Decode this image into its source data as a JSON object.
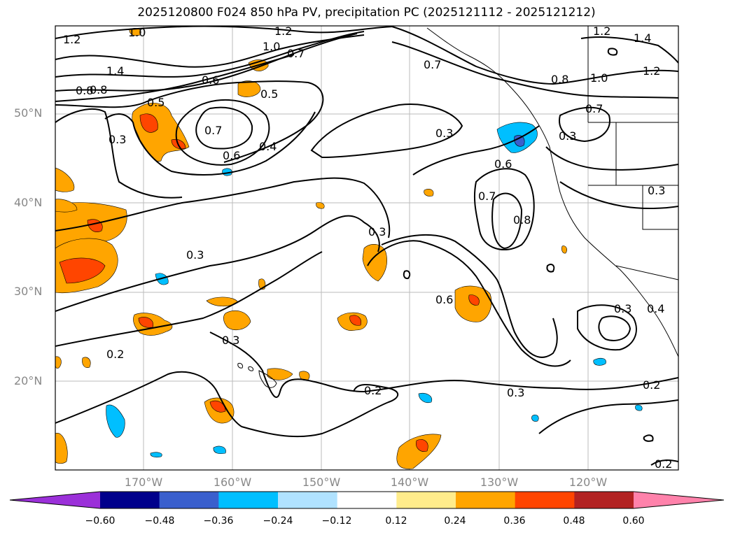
{
  "title": "2025120800 F024 850 hPa PV, precipitation PC (2025121112 - 2025121212)",
  "latitude_labels": [
    "50°N",
    "40°N",
    "30°N",
    "20°N"
  ],
  "longitude_labels": [
    "170°W",
    "160°W",
    "150°W",
    "140°W",
    "130°W",
    "120°W"
  ],
  "colorbar": {
    "tick_labels": [
      "−0.60",
      "−0.48",
      "−0.36",
      "−0.24",
      "−0.12",
      "0.12",
      "0.24",
      "0.36",
      "0.48",
      "0.60"
    ],
    "colors": [
      "#9b30d9",
      "#00008b",
      "#3a5fcd",
      "#00bfff",
      "#b0e2ff",
      "#ffffff",
      "#ffec8b",
      "#ffa500",
      "#ff4500",
      "#b22222",
      "#ff82ab"
    ]
  },
  "contour_labels": [
    {
      "text": "1.2"
    },
    {
      "text": "1.0"
    },
    {
      "text": "1.4"
    },
    {
      "text": "1.2"
    },
    {
      "text": "1.0"
    },
    {
      "text": "0.7"
    },
    {
      "text": "0.6"
    },
    {
      "text": "0.8"
    },
    {
      "text": "0.5"
    },
    {
      "text": "0.5"
    },
    {
      "text": "0.3"
    },
    {
      "text": "0.7"
    },
    {
      "text": "0.6"
    },
    {
      "text": "0.4"
    },
    {
      "text": "0.3"
    },
    {
      "text": "0.7"
    },
    {
      "text": "0.8"
    },
    {
      "text": "1.0"
    },
    {
      "text": "1.2"
    },
    {
      "text": "0.7"
    },
    {
      "text": "0.3"
    },
    {
      "text": "0.6"
    },
    {
      "text": "0.7"
    },
    {
      "text": "0.8"
    },
    {
      "text": "0.3"
    },
    {
      "text": "0.3"
    },
    {
      "text": "0.6"
    },
    {
      "text": "0.3"
    },
    {
      "text": "0.4"
    },
    {
      "text": "0.2"
    },
    {
      "text": "0.3"
    },
    {
      "text": "0.2"
    },
    {
      "text": "0.3"
    },
    {
      "text": "0.2"
    },
    {
      "text": "0.2"
    },
    {
      "text": "1.2"
    },
    {
      "text": "1.4"
    },
    {
      "text": "0.3"
    },
    {
      "text": "0.8"
    }
  ]
}
